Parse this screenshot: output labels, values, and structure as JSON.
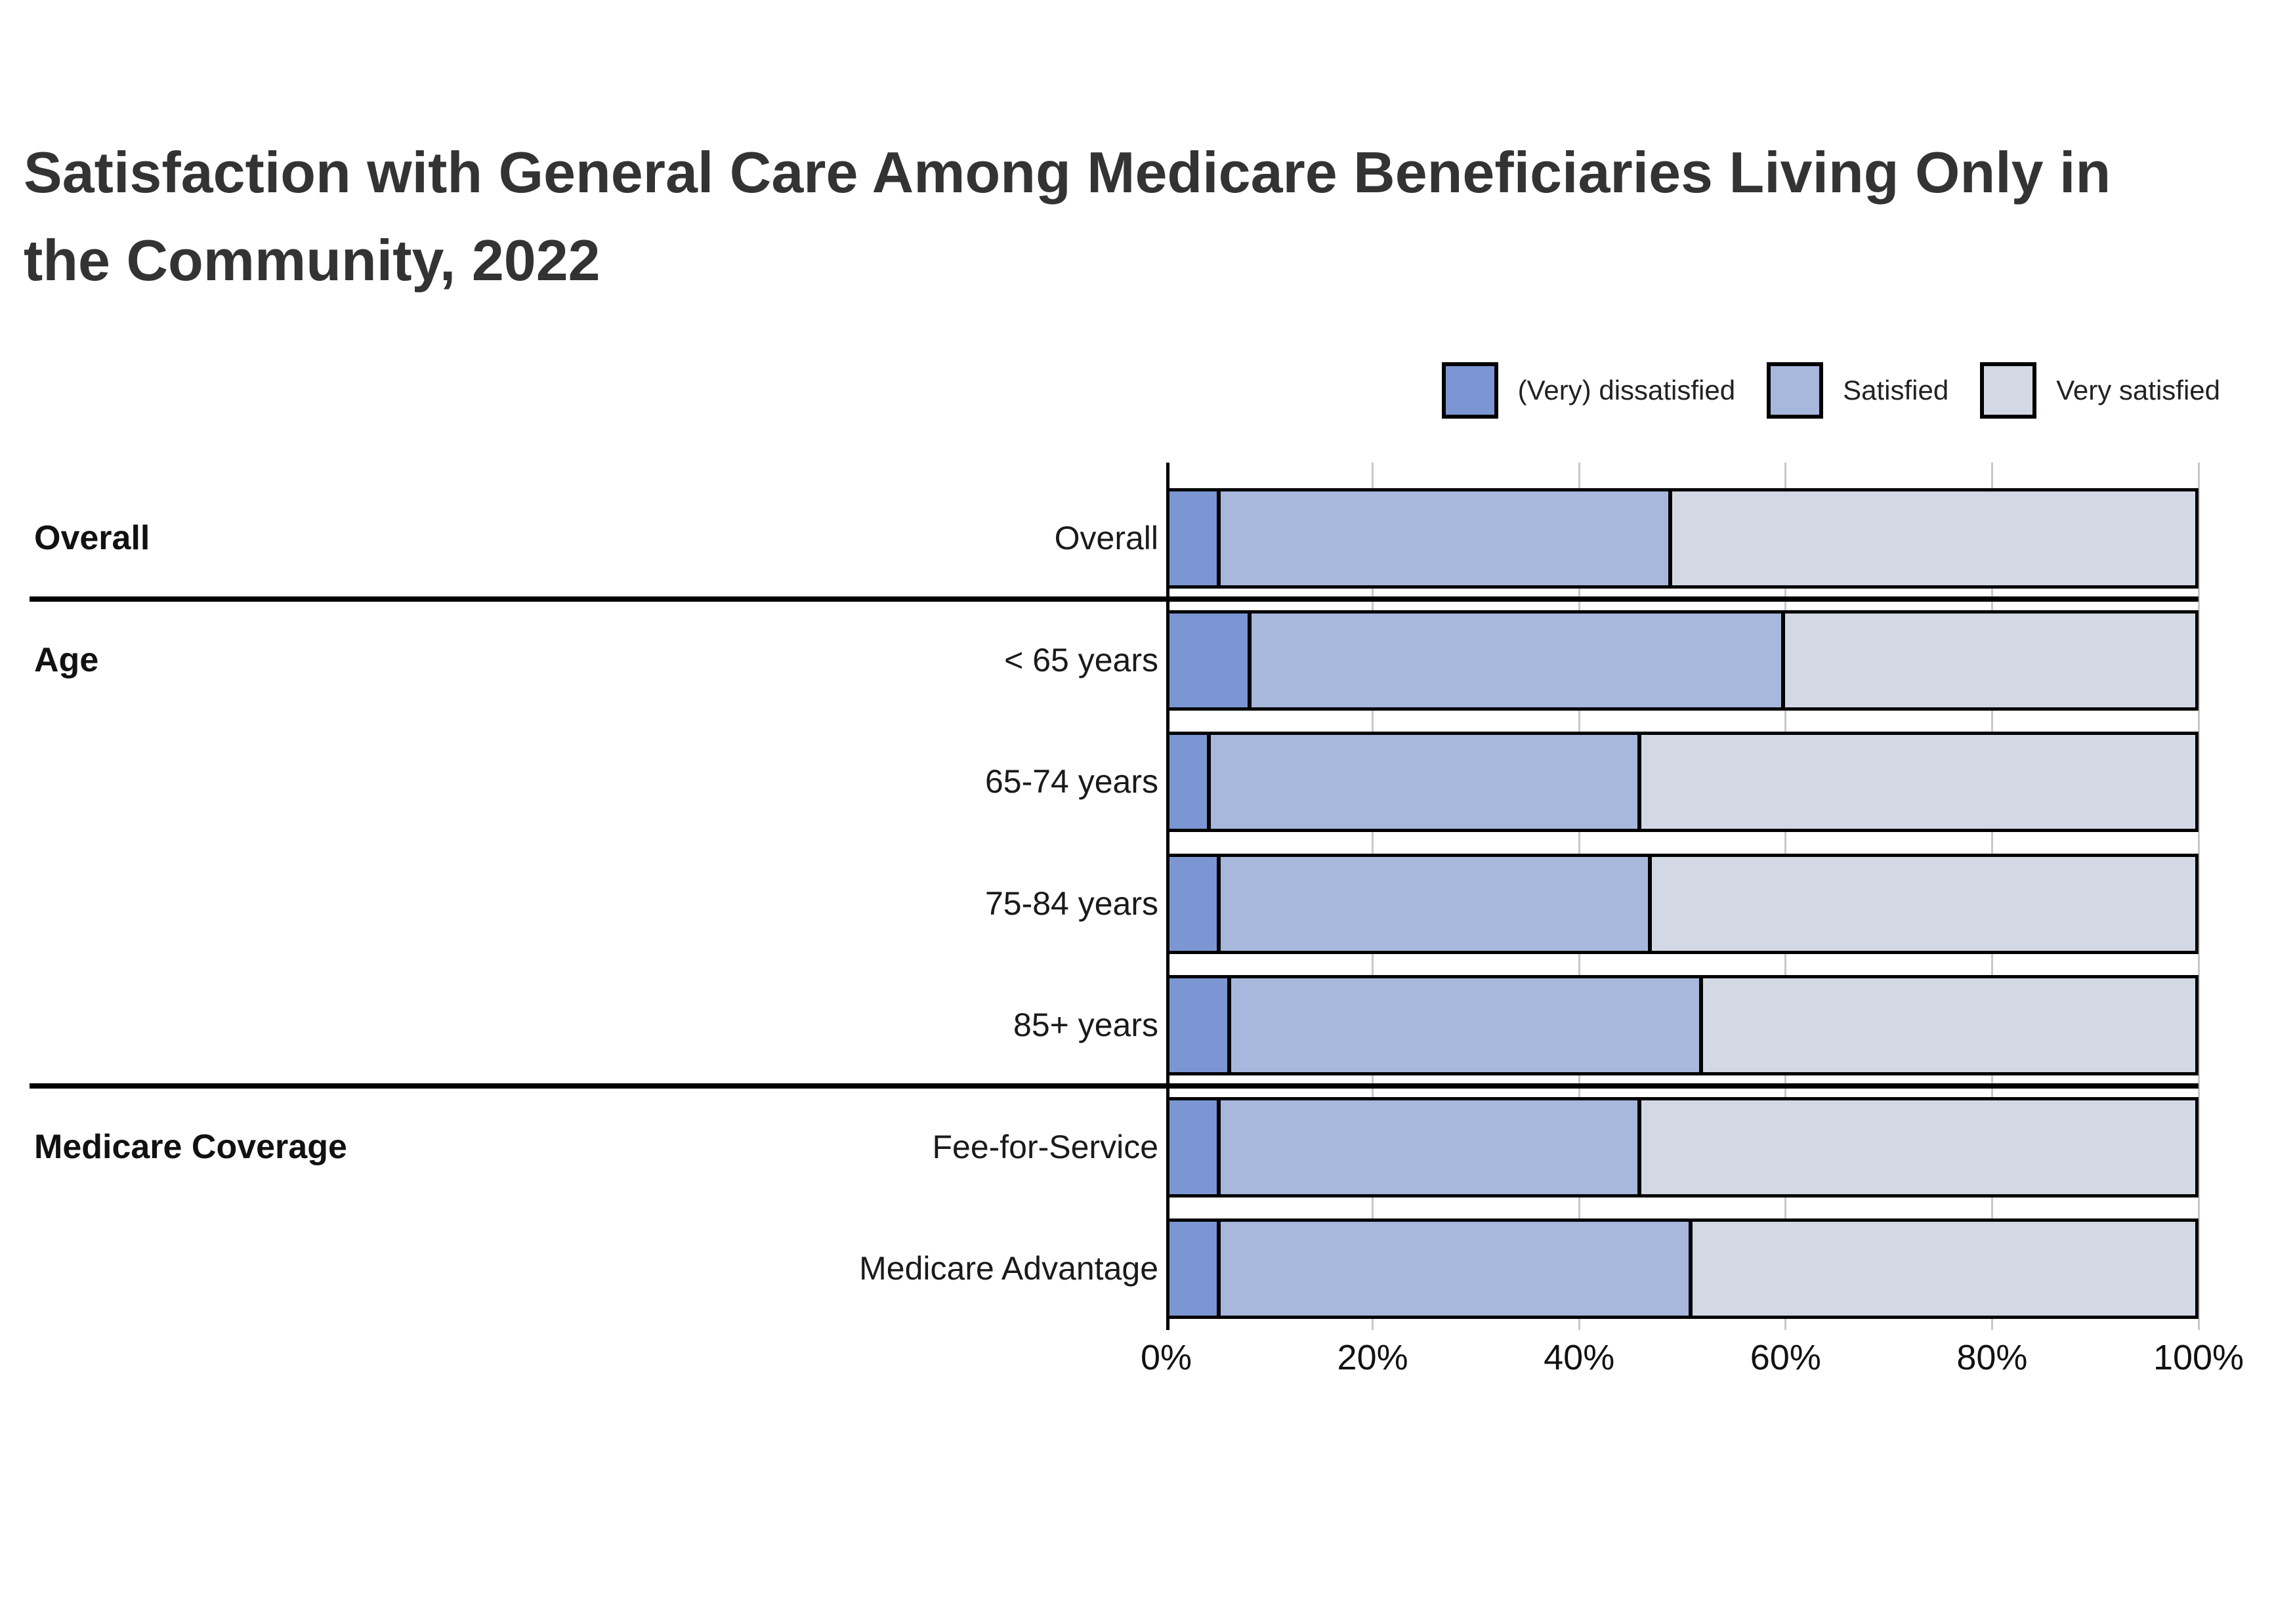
{
  "title": "Satisfaction with General Care Among Medicare Beneficiaries Living Only in the Community, 2022",
  "legend": {
    "items": [
      {
        "label": "(Very) dissatisfied",
        "color": "#7b96d3"
      },
      {
        "label": "Satisfied",
        "color": "#a7b8dc"
      },
      {
        "label": "Very satisfied",
        "color": "#d2d9e4"
      }
    ]
  },
  "chart_data": {
    "type": "bar",
    "stacked": true,
    "orientation": "horizontal",
    "title": "Satisfaction with General Care Among Medicare Beneficiaries Living Only in the Community, 2022",
    "categories": [
      "Overall",
      "< 65 years",
      "65-74 years",
      "75-84 years",
      "85+ years",
      "Fee-for-Service",
      "Medicare Advantage"
    ],
    "groups": [
      {
        "name": "Overall",
        "categories": [
          "Overall"
        ]
      },
      {
        "name": "Age",
        "categories": [
          "< 65 years",
          "65-74 years",
          "75-84 years",
          "85+ years"
        ]
      },
      {
        "name": "Medicare Coverage",
        "categories": [
          "Fee-for-Service",
          "Medicare Advantage"
        ]
      }
    ],
    "series": [
      {
        "name": "(Very) dissatisfied",
        "color": "#7b96d3",
        "values": [
          5,
          8,
          4,
          5,
          6,
          5,
          5
        ]
      },
      {
        "name": "Satisfied",
        "color": "#a7b8dc",
        "values": [
          44,
          52,
          42,
          42,
          46,
          41,
          46
        ]
      },
      {
        "name": "Very satisfied",
        "color": "#d2d9e4",
        "values": [
          51,
          40,
          54,
          53,
          48,
          54,
          49
        ]
      }
    ],
    "x_axis": {
      "tick_labels": [
        "0%",
        "20%",
        "40%",
        "60%",
        "80%",
        "100%"
      ],
      "min": 0,
      "max": 100,
      "unit": "%",
      "grid": true
    },
    "legend_position": "top-right",
    "value_format": "percent of row total"
  }
}
